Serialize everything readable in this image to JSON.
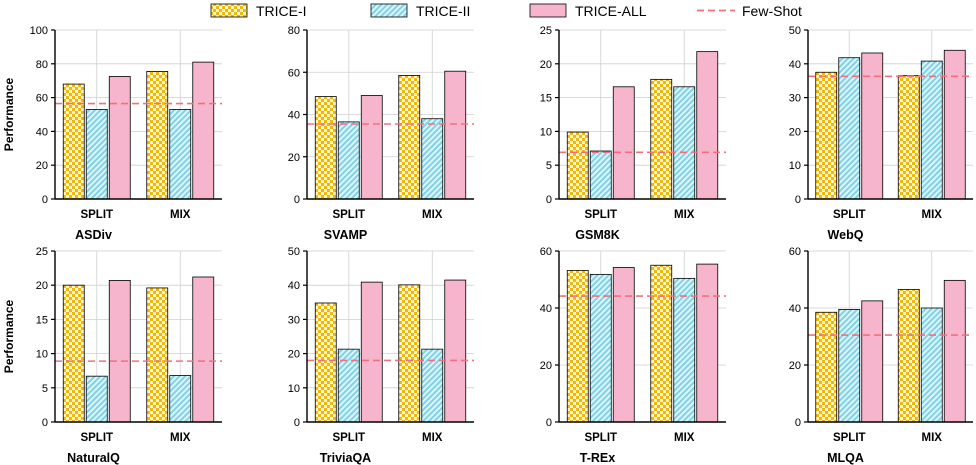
{
  "legend": {
    "items": [
      "TRICE-I",
      "TRICE-II",
      "TRICE-ALL",
      "Few-Shot"
    ]
  },
  "colors": {
    "trice_i_a": "#f5b800",
    "trice_i_b": "#fff6d8",
    "trice_ii_a": "#7fd3e6",
    "trice_ii_b": "#dff4fa",
    "trice_all": "#f7b5cd",
    "few_shot": "#f0717d",
    "grid": "#cfcfcf"
  },
  "ylabel": "Performance",
  "chart_data": [
    {
      "type": "bar",
      "title": "ASDiv",
      "categories": [
        "SPLIT",
        "MIX"
      ],
      "ylim": [
        0,
        100
      ],
      "yticks": [
        0,
        20,
        40,
        60,
        80,
        100
      ],
      "ylabel": "Performance",
      "series": [
        {
          "name": "TRICE-I",
          "values": [
            68,
            75.5
          ]
        },
        {
          "name": "TRICE-II",
          "values": [
            53,
            53
          ]
        },
        {
          "name": "TRICE-ALL",
          "values": [
            72.5,
            81
          ]
        }
      ],
      "few_shot": 56.5
    },
    {
      "type": "bar",
      "title": "SVAMP",
      "categories": [
        "SPLIT",
        "MIX"
      ],
      "ylim": [
        0,
        80
      ],
      "yticks": [
        0,
        20,
        40,
        60,
        80
      ],
      "ylabel": "",
      "series": [
        {
          "name": "TRICE-I",
          "values": [
            48.5,
            58.5
          ]
        },
        {
          "name": "TRICE-II",
          "values": [
            36.5,
            38
          ]
        },
        {
          "name": "TRICE-ALL",
          "values": [
            49,
            60.5
          ]
        }
      ],
      "few_shot": 35.5
    },
    {
      "type": "bar",
      "title": "GSM8K",
      "categories": [
        "SPLIT",
        "MIX"
      ],
      "ylim": [
        0,
        25
      ],
      "yticks": [
        0,
        5,
        10,
        15,
        20,
        25
      ],
      "ylabel": "",
      "series": [
        {
          "name": "TRICE-I",
          "values": [
            9.9,
            17.7
          ]
        },
        {
          "name": "TRICE-II",
          "values": [
            7.1,
            16.6
          ]
        },
        {
          "name": "TRICE-ALL",
          "values": [
            16.6,
            21.8
          ]
        }
      ],
      "few_shot": 6.9
    },
    {
      "type": "bar",
      "title": "WebQ",
      "categories": [
        "SPLIT",
        "MIX"
      ],
      "ylim": [
        0,
        50
      ],
      "yticks": [
        0,
        10,
        20,
        30,
        40,
        50
      ],
      "ylabel": "",
      "series": [
        {
          "name": "TRICE-I",
          "values": [
            37.5,
            36.5
          ]
        },
        {
          "name": "TRICE-II",
          "values": [
            41.8,
            40.8
          ]
        },
        {
          "name": "TRICE-ALL",
          "values": [
            43.2,
            44
          ]
        }
      ],
      "few_shot": 36.3
    },
    {
      "type": "bar",
      "title": "NaturalQ",
      "categories": [
        "SPLIT",
        "MIX"
      ],
      "ylim": [
        0,
        25
      ],
      "yticks": [
        0,
        5,
        10,
        15,
        20,
        25
      ],
      "ylabel": "Performance",
      "series": [
        {
          "name": "TRICE-I",
          "values": [
            20,
            19.6
          ]
        },
        {
          "name": "TRICE-II",
          "values": [
            6.7,
            6.8
          ]
        },
        {
          "name": "TRICE-ALL",
          "values": [
            20.7,
            21.2
          ]
        }
      ],
      "few_shot": 8.9
    },
    {
      "type": "bar",
      "title": "TriviaQA",
      "categories": [
        "SPLIT",
        "MIX"
      ],
      "ylim": [
        0,
        50
      ],
      "yticks": [
        0,
        10,
        20,
        30,
        40,
        50
      ],
      "ylabel": "",
      "series": [
        {
          "name": "TRICE-I",
          "values": [
            34.8,
            40.1
          ]
        },
        {
          "name": "TRICE-II",
          "values": [
            21.3,
            21.3
          ]
        },
        {
          "name": "TRICE-ALL",
          "values": [
            40.9,
            41.5
          ]
        }
      ],
      "few_shot": 18
    },
    {
      "type": "bar",
      "title": "T-REx",
      "categories": [
        "SPLIT",
        "MIX"
      ],
      "ylim": [
        0,
        60
      ],
      "yticks": [
        0,
        20,
        40,
        60
      ],
      "ylabel": "",
      "series": [
        {
          "name": "TRICE-I",
          "values": [
            53.2,
            55
          ]
        },
        {
          "name": "TRICE-II",
          "values": [
            51.8,
            50.4
          ]
        },
        {
          "name": "TRICE-ALL",
          "values": [
            54.2,
            55.4
          ]
        }
      ],
      "few_shot": 44.2
    },
    {
      "type": "bar",
      "title": "MLQA",
      "categories": [
        "SPLIT",
        "MIX"
      ],
      "ylim": [
        0,
        60
      ],
      "yticks": [
        0,
        20,
        40,
        60
      ],
      "ylabel": "",
      "series": [
        {
          "name": "TRICE-I",
          "values": [
            38.5,
            46.5
          ]
        },
        {
          "name": "TRICE-II",
          "values": [
            39.5,
            40
          ]
        },
        {
          "name": "TRICE-ALL",
          "values": [
            42.5,
            49.7
          ]
        }
      ],
      "few_shot": 30.5
    }
  ]
}
